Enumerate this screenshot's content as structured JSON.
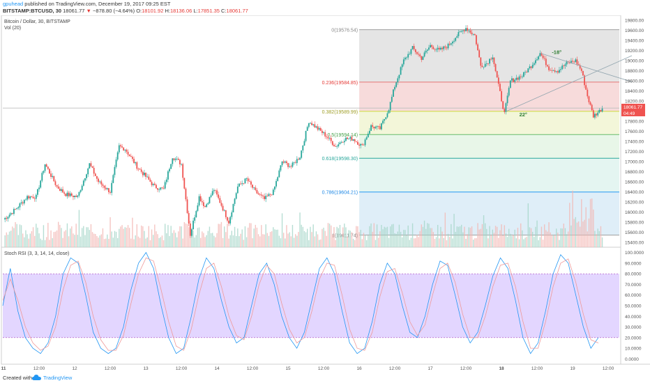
{
  "header": {
    "user": "gpuhead",
    "published": "published on TradingView.com, December 19, 2017 09:25 EST",
    "symbol": "BITSTAMP:BTCUSD, 30",
    "last": "18061.77",
    "change": "−878.80 (−4.64%)",
    "open_label": "O:",
    "open": "18101.92",
    "high_label": "H:",
    "high": "18136.06",
    "low_label": "L:",
    "low": "17851.35",
    "close_label": "C:",
    "close": "18061.77"
  },
  "legend": {
    "title": "Bitcoin / Dollar, 30, BITSTAMP",
    "volume": "Vol (20)",
    "rsi": "Stoch RSI (3, 3, 14, 14, close)"
  },
  "price_tag": {
    "price": "18061.77",
    "countdown": "04:49"
  },
  "colors": {
    "up": "#26a69a",
    "down": "#ef5350",
    "rsi_band": "#d9c8ff",
    "rsi_k": "#2196f3",
    "rsi_d": "#ef9a9a",
    "brand": "#2196f3"
  },
  "chart_data": [
    {
      "type": "candlestick",
      "title": "Bitcoin / Dollar, 30, BITSTAMP",
      "ylim": [
        15300,
        19900
      ],
      "y_ticks": [
        "19800.00",
        "19600.00",
        "19400.00",
        "19200.00",
        "19000.00",
        "18800.00",
        "18600.00",
        "18400.00",
        "18200.00",
        "18000.00",
        "17800.00",
        "17600.00",
        "17400.00",
        "17200.00",
        "17000.00",
        "16800.00",
        "16600.00",
        "16400.00",
        "16200.00",
        "16000.00",
        "15800.00",
        "15600.00",
        "15400.00"
      ],
      "x_ticks": [
        {
          "label": "11",
          "i": 0,
          "bold": true
        },
        {
          "label": "12:00",
          "i": 24
        },
        {
          "label": "12",
          "i": 48
        },
        {
          "label": "12:00",
          "i": 72
        },
        {
          "label": "13",
          "i": 96
        },
        {
          "label": "12:00",
          "i": 120
        },
        {
          "label": "14",
          "i": 144
        },
        {
          "label": "12:00",
          "i": 168
        },
        {
          "label": "15",
          "i": 192
        },
        {
          "label": "12:00",
          "i": 216
        },
        {
          "label": "16",
          "i": 240
        },
        {
          "label": "12:00",
          "i": 264
        },
        {
          "label": "17",
          "i": 288
        },
        {
          "label": "12:00",
          "i": 312
        },
        {
          "label": "18",
          "i": 336,
          "bold": true
        },
        {
          "label": "12:00",
          "i": 360
        },
        {
          "label": "19",
          "i": 384
        },
        {
          "label": "12:00",
          "i": 408
        }
      ],
      "key_points": [
        {
          "i": 0,
          "p": 15850
        },
        {
          "i": 8,
          "p": 16050
        },
        {
          "i": 16,
          "p": 16300
        },
        {
          "i": 22,
          "p": 16300
        },
        {
          "i": 28,
          "p": 16950
        },
        {
          "i": 36,
          "p": 16500
        },
        {
          "i": 42,
          "p": 16350
        },
        {
          "i": 50,
          "p": 16300
        },
        {
          "i": 58,
          "p": 16950
        },
        {
          "i": 64,
          "p": 16600
        },
        {
          "i": 72,
          "p": 16400
        },
        {
          "i": 78,
          "p": 17300
        },
        {
          "i": 82,
          "p": 17250
        },
        {
          "i": 90,
          "p": 16900
        },
        {
          "i": 96,
          "p": 16700
        },
        {
          "i": 102,
          "p": 16500
        },
        {
          "i": 108,
          "p": 16450
        },
        {
          "i": 114,
          "p": 17100
        },
        {
          "i": 120,
          "p": 16950
        },
        {
          "i": 126,
          "p": 15550
        },
        {
          "i": 132,
          "p": 16300
        },
        {
          "i": 136,
          "p": 16100
        },
        {
          "i": 142,
          "p": 16450
        },
        {
          "i": 146,
          "p": 16200
        },
        {
          "i": 152,
          "p": 15800
        },
        {
          "i": 158,
          "p": 16500
        },
        {
          "i": 164,
          "p": 16650
        },
        {
          "i": 170,
          "p": 16400
        },
        {
          "i": 176,
          "p": 16250
        },
        {
          "i": 182,
          "p": 16400
        },
        {
          "i": 188,
          "p": 17000
        },
        {
          "i": 194,
          "p": 16900
        },
        {
          "i": 200,
          "p": 17100
        },
        {
          "i": 206,
          "p": 17800
        },
        {
          "i": 212,
          "p": 17650
        },
        {
          "i": 218,
          "p": 17500
        },
        {
          "i": 224,
          "p": 17300
        },
        {
          "i": 230,
          "p": 17450
        },
        {
          "i": 236,
          "p": 17450
        },
        {
          "i": 242,
          "p": 17300
        },
        {
          "i": 248,
          "p": 17700
        },
        {
          "i": 254,
          "p": 17650
        },
        {
          "i": 260,
          "p": 18050
        },
        {
          "i": 264,
          "p": 18500
        },
        {
          "i": 270,
          "p": 19000
        },
        {
          "i": 276,
          "p": 19250
        },
        {
          "i": 282,
          "p": 19050
        },
        {
          "i": 288,
          "p": 19300
        },
        {
          "i": 294,
          "p": 19200
        },
        {
          "i": 300,
          "p": 19300
        },
        {
          "i": 306,
          "p": 19500
        },
        {
          "i": 312,
          "p": 19650
        },
        {
          "i": 318,
          "p": 19500
        },
        {
          "i": 322,
          "p": 18900
        },
        {
          "i": 326,
          "p": 18950
        },
        {
          "i": 330,
          "p": 19100
        },
        {
          "i": 334,
          "p": 18500
        },
        {
          "i": 338,
          "p": 17950
        },
        {
          "i": 342,
          "p": 18600
        },
        {
          "i": 350,
          "p": 18700
        },
        {
          "i": 356,
          "p": 18900
        },
        {
          "i": 362,
          "p": 19150
        },
        {
          "i": 368,
          "p": 18850
        },
        {
          "i": 374,
          "p": 18800
        },
        {
          "i": 380,
          "p": 18950
        },
        {
          "i": 386,
          "p": 19000
        },
        {
          "i": 390,
          "p": 18800
        },
        {
          "i": 394,
          "p": 18300
        },
        {
          "i": 398,
          "p": 17900
        },
        {
          "i": 402,
          "p": 18000
        },
        {
          "i": 404,
          "p": 18060
        }
      ],
      "fibonacci": [
        {
          "label": "0(19576.54)",
          "price": 19615,
          "fill": "#e0e0e0",
          "line": "#9e9e9e",
          "text": "#888888"
        },
        {
          "label": "0.236(19584.85)",
          "price": 18575,
          "fill": "#f6d5d5",
          "line": "#e57373",
          "text": "#e53935"
        },
        {
          "label": "0.382(19589.99)",
          "price": 17995,
          "fill": "#f1f4d2",
          "line": "#cddc39",
          "text": "#9e9d24"
        },
        {
          "label": "0.5(19594.14)",
          "price": 17535,
          "fill": "#e4f5e4",
          "line": "#66bb6a",
          "text": "#43a047"
        },
        {
          "label": "0.618(19598.30)",
          "price": 17065,
          "fill": "#dff3ee",
          "line": "#26a69a",
          "text": "#26a69a"
        },
        {
          "label": "0.786(19604.21)",
          "price": 16395,
          "fill": "#d9ebf7",
          "line": "#2196f3",
          "text": "#1e88e5"
        },
        {
          "label": "1(19611.74)",
          "price": 15540,
          "fill": "#d9ebf7",
          "line": "#9e9e9e",
          "text": "#888888"
        }
      ],
      "fib_start_i": 240,
      "trendlines": [
        {
          "from": {
            "i": 338,
            "p": 17980
          },
          "to": {
            "i": 424,
            "p": 19100
          },
          "label": "22°",
          "label_at": {
            "i": 348,
            "p": 17900
          }
        },
        {
          "from": {
            "i": 362,
            "p": 19150
          },
          "to": {
            "i": 424,
            "p": 18580
          },
          "label": "-18°",
          "label_at": {
            "i": 370,
            "p": 19130
          }
        }
      ],
      "horizontal_line_price": 18060
    },
    {
      "type": "line",
      "title": "Stoch RSI (3, 3, 14, 14, close)",
      "ylim": [
        -5,
        105
      ],
      "y_ticks": [
        "100.0000",
        "90.0000",
        "80.0000",
        "70.0000",
        "60.0000",
        "50.0000",
        "40.0000",
        "30.0000",
        "20.0000",
        "10.0000",
        "0.0000"
      ],
      "band": [
        20,
        80
      ],
      "series": [
        {
          "role": "K",
          "values": [
            50,
            85,
            45,
            20,
            10,
            5,
            15,
            40,
            80,
            95,
            90,
            60,
            25,
            10,
            5,
            10,
            30,
            65,
            90,
            100,
            85,
            50,
            20,
            5,
            10,
            40,
            75,
            95,
            85,
            55,
            30,
            15,
            20,
            50,
            80,
            90,
            70,
            40,
            20,
            10,
            25,
            55,
            85,
            95,
            80,
            45,
            15,
            5,
            10,
            35,
            70,
            90,
            80,
            50,
            25,
            20,
            40,
            70,
            92,
            88,
            60,
            30,
            15,
            25,
            50,
            78,
            95,
            85,
            55,
            20,
            5,
            15,
            45,
            80,
            98,
            90,
            60,
            30,
            10,
            20
          ]
        },
        {
          "role": "D",
          "values": [
            55,
            75,
            55,
            30,
            15,
            8,
            12,
            30,
            65,
            88,
            92,
            72,
            40,
            18,
            8,
            8,
            22,
            52,
            80,
            95,
            92,
            65,
            35,
            12,
            8,
            28,
            60,
            85,
            90,
            68,
            40,
            22,
            18,
            40,
            70,
            88,
            80,
            52,
            28,
            15,
            20,
            45,
            75,
            90,
            88,
            60,
            28,
            10,
            8,
            25,
            58,
            82,
            85,
            62,
            35,
            22,
            32,
            60,
            85,
            90,
            72,
            42,
            20,
            20,
            40,
            68,
            88,
            90,
            68,
            35,
            10,
            10,
            35,
            68,
            90,
            94,
            72,
            42,
            18,
            15
          ]
        }
      ]
    }
  ],
  "footer": {
    "created": "Created with",
    "brand": "TradingView"
  }
}
